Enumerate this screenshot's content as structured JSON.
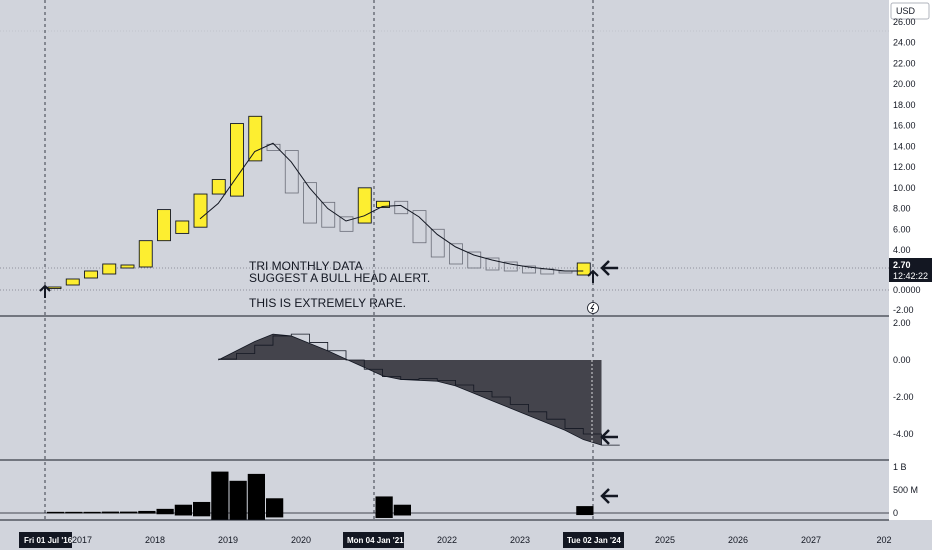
{
  "colors": {
    "background": "#d1d4dc",
    "axis_bg": "#ffffff",
    "up_candle": "#fdee30",
    "candle_border": "#131722",
    "down_candle_border": "#6a6d78",
    "indicator_fill": "#44444c",
    "grid": "#b2b5be",
    "text": "#131722",
    "label_bg": "#131722",
    "label_text": "#ffffff"
  },
  "currency": "USD",
  "price_label": {
    "value": "2.70",
    "countdown": "12:42:22"
  },
  "annotation": {
    "line1": "TRI MONTHLY DATA",
    "line2": "SUGGEST A BULL HEAD ALERT.",
    "line3": "THIS IS EXTREMELY RARE."
  },
  "date_labels": [
    "Fri 01 Jul '16",
    "Mon 04 Jan '21",
    "Tue 02 Jan '24"
  ],
  "chart_data": [
    {
      "type": "candlestick",
      "title": "",
      "y_ticks": [
        "26.00",
        "24.00",
        "22.00",
        "20.00",
        "18.00",
        "16.00",
        "14.00",
        "12.00",
        "10.00",
        "8.00",
        "6.00",
        "4.00",
        "0.0000",
        "-2.00"
      ],
      "x_ticks": [
        "2017",
        "2018",
        "2019",
        "2020",
        "2021",
        "2022",
        "2023",
        "2024",
        "2025",
        "2026",
        "2027",
        "202"
      ],
      "ylim": [
        -2.5,
        28
      ],
      "candles": [
        {
          "d": 0,
          "o": 0.2,
          "c": 0.3
        },
        {
          "d": 1,
          "o": 0.5,
          "c": 1.1
        },
        {
          "d": 2,
          "o": 1.2,
          "c": 1.9
        },
        {
          "d": 3,
          "o": 1.6,
          "c": 2.6
        },
        {
          "d": 4,
          "o": 2.2,
          "c": 2.5
        },
        {
          "d": 5,
          "o": 2.3,
          "c": 4.9
        },
        {
          "d": 6,
          "o": 4.9,
          "c": 7.9
        },
        {
          "d": 7,
          "o": 5.6,
          "c": 6.8
        },
        {
          "d": 8,
          "o": 6.2,
          "c": 9.4
        },
        {
          "d": 9,
          "o": 9.4,
          "c": 10.8
        },
        {
          "d": 10,
          "o": 9.2,
          "c": 16.2
        },
        {
          "d": 11,
          "o": 12.6,
          "c": 16.9
        },
        {
          "d": 12,
          "o": 14.2,
          "c": 13.6
        },
        {
          "d": 13,
          "o": 13.6,
          "c": 9.5
        },
        {
          "d": 14,
          "o": 10.5,
          "c": 6.6
        },
        {
          "d": 15,
          "o": 8.6,
          "c": 6.2
        },
        {
          "d": 16,
          "o": 7.2,
          "c": 5.8
        },
        {
          "d": 17,
          "o": 6.6,
          "c": 10.0
        },
        {
          "d": 18,
          "o": 8.1,
          "c": 8.7
        },
        {
          "d": 19,
          "o": 8.7,
          "c": 7.5
        },
        {
          "d": 20,
          "o": 7.8,
          "c": 4.7
        },
        {
          "d": 21,
          "o": 6.0,
          "c": 3.3
        },
        {
          "d": 22,
          "o": 4.6,
          "c": 2.6
        },
        {
          "d": 23,
          "o": 3.8,
          "c": 2.2
        },
        {
          "d": 24,
          "o": 3.2,
          "c": 2.0
        },
        {
          "d": 25,
          "o": 2.8,
          "c": 1.9
        },
        {
          "d": 26,
          "o": 2.4,
          "c": 1.7
        },
        {
          "d": 27,
          "o": 2.1,
          "c": 1.6
        },
        {
          "d": 28,
          "o": 1.9,
          "c": 1.7
        },
        {
          "d": 29,
          "o": 1.5,
          "c": 2.7
        }
      ],
      "moving_average": [
        {
          "d": 8,
          "v": 7.0
        },
        {
          "d": 9,
          "v": 8.5
        },
        {
          "d": 10,
          "v": 11.0
        },
        {
          "d": 11,
          "v": 13.5
        },
        {
          "d": 12,
          "v": 14.3
        },
        {
          "d": 13,
          "v": 12.5
        },
        {
          "d": 14,
          "v": 10.0
        },
        {
          "d": 15,
          "v": 8.0
        },
        {
          "d": 16,
          "v": 6.8
        },
        {
          "d": 17,
          "v": 7.3
        },
        {
          "d": 18,
          "v": 8.2
        },
        {
          "d": 19,
          "v": 8.3
        },
        {
          "d": 20,
          "v": 7.2
        },
        {
          "d": 21,
          "v": 5.5
        },
        {
          "d": 22,
          "v": 4.3
        },
        {
          "d": 23,
          "v": 3.5
        },
        {
          "d": 24,
          "v": 3.0
        },
        {
          "d": 25,
          "v": 2.6
        },
        {
          "d": 26,
          "v": 2.3
        },
        {
          "d": 27,
          "v": 2.1
        },
        {
          "d": 28,
          "v": 1.9
        },
        {
          "d": 29,
          "v": 1.9
        }
      ]
    },
    {
      "type": "area",
      "y_ticks": [
        "2.00",
        "0.00",
        "-2.00",
        "-4.00"
      ],
      "ylim": [
        -4.8,
        2.0
      ],
      "points": [
        {
          "d": 9,
          "v": 0.0,
          "step": 0.05
        },
        {
          "d": 10,
          "v": 0.5,
          "step": 0.35
        },
        {
          "d": 11,
          "v": 1.0,
          "step": 0.8
        },
        {
          "d": 12,
          "v": 1.4,
          "step": 1.3
        },
        {
          "d": 13,
          "v": 1.3,
          "step": 1.4
        },
        {
          "d": 14,
          "v": 0.9,
          "step": 0.95
        },
        {
          "d": 15,
          "v": 0.5,
          "step": 0.5
        },
        {
          "d": 16,
          "v": 0.05,
          "step": 0.0
        },
        {
          "d": 17,
          "v": -0.4,
          "step": -0.5
        },
        {
          "d": 18,
          "v": -0.85,
          "step": -0.9
        },
        {
          "d": 19,
          "v": -1.05,
          "step": -1.05
        },
        {
          "d": 20,
          "v": -1.1,
          "step": -1.0
        },
        {
          "d": 21,
          "v": -1.15,
          "step": -1.1
        },
        {
          "d": 22,
          "v": -1.4,
          "step": -1.35
        },
        {
          "d": 23,
          "v": -1.8,
          "step": -1.7
        },
        {
          "d": 24,
          "v": -2.2,
          "step": -2.0
        },
        {
          "d": 25,
          "v": -2.6,
          "step": -2.4
        },
        {
          "d": 26,
          "v": -3.0,
          "step": -2.8
        },
        {
          "d": 27,
          "v": -3.4,
          "step": -3.2
        },
        {
          "d": 28,
          "v": -3.8,
          "step": -3.7
        },
        {
          "d": 29,
          "v": -4.3,
          "step": -4.0
        },
        {
          "d": 30,
          "v": -4.6,
          "step": -4.6
        }
      ]
    },
    {
      "type": "bar",
      "y_ticks": [
        "1 B",
        "500 M",
        "0"
      ],
      "ylim": [
        -150,
        1150
      ],
      "bars": [
        {
          "d": 0,
          "v": 25
        },
        {
          "d": 1,
          "v": 25
        },
        {
          "d": 2,
          "v": 25
        },
        {
          "d": 3,
          "v": 30
        },
        {
          "d": 4,
          "v": 30
        },
        {
          "d": 5,
          "v": 45
        },
        {
          "d": 6,
          "v": 90
        },
        {
          "d": 7,
          "v": 180
        },
        {
          "d": 8,
          "v": 240
        },
        {
          "d": 9,
          "v": 900
        },
        {
          "d": 10,
          "v": 700
        },
        {
          "d": 11,
          "v": 850
        },
        {
          "d": 12,
          "v": 320
        },
        {
          "d": 18,
          "v": 360
        },
        {
          "d": 19,
          "v": 180
        },
        {
          "d": 29,
          "v": 150
        }
      ]
    }
  ]
}
